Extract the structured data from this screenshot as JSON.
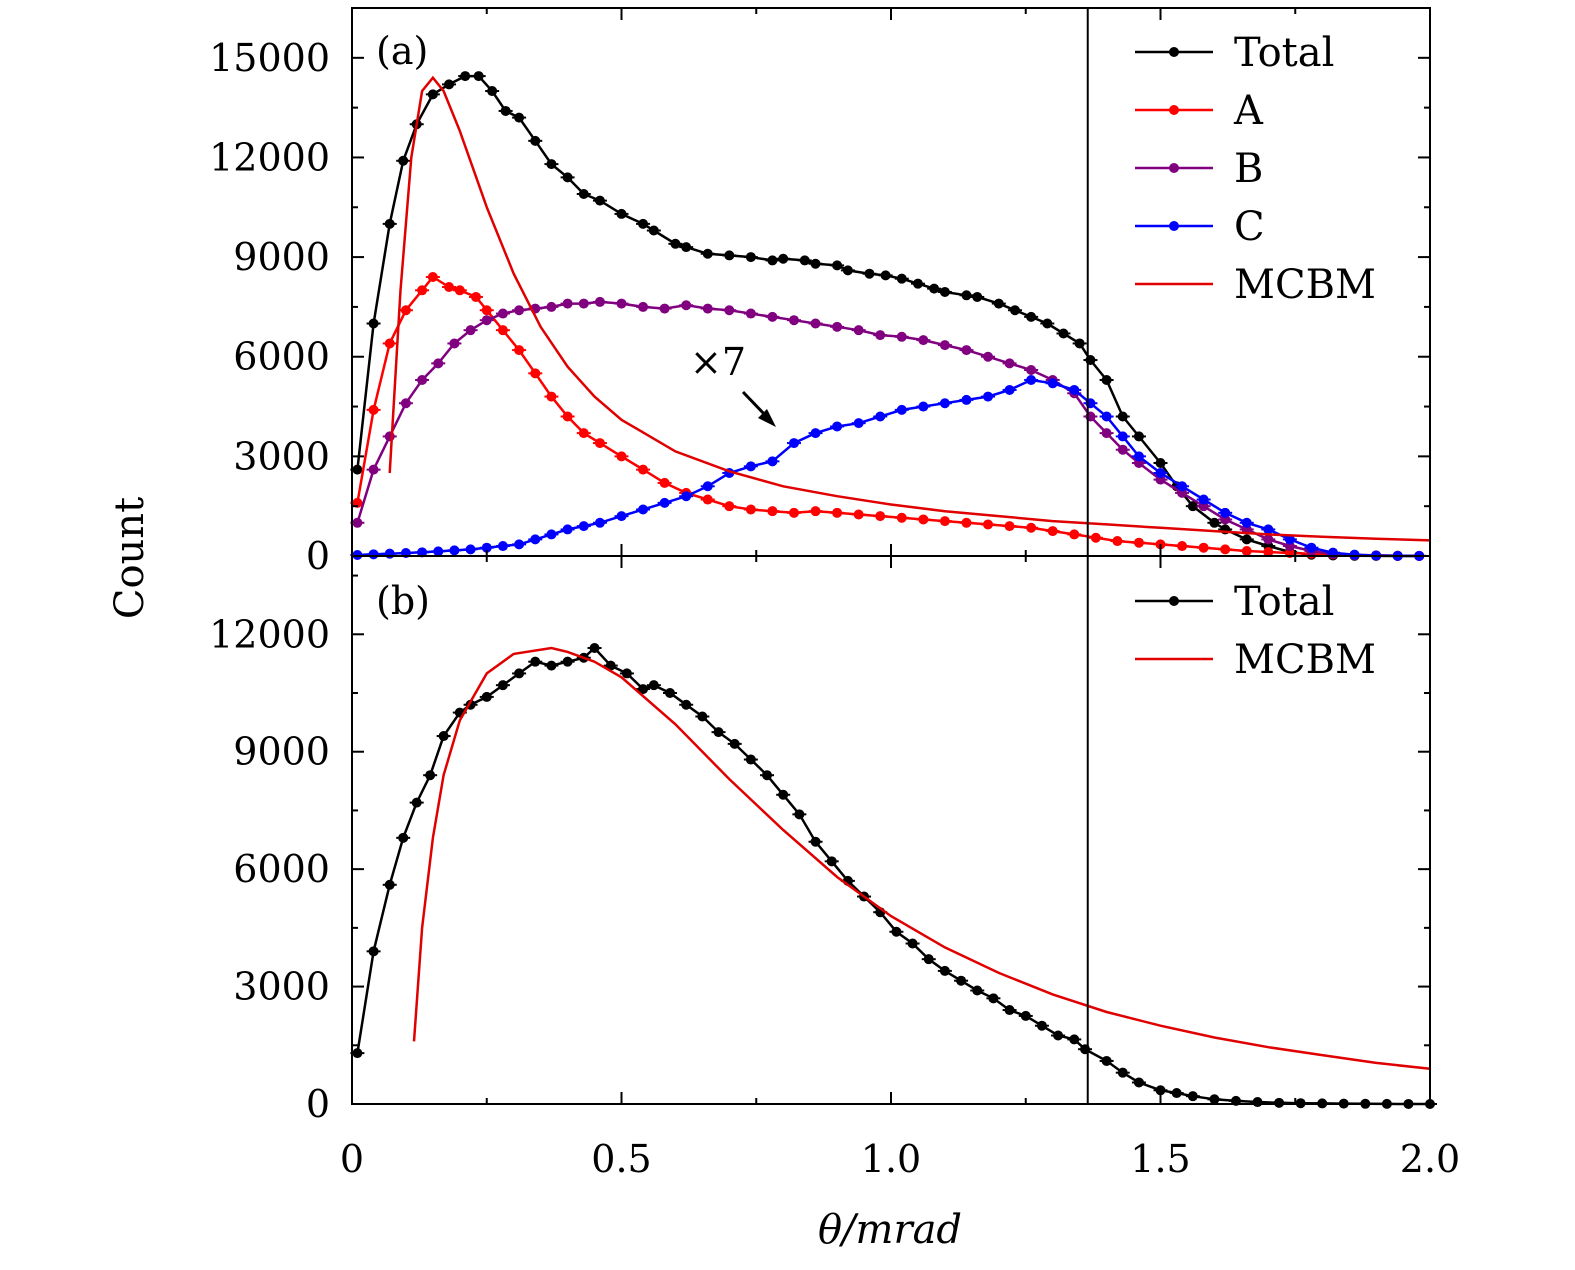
{
  "figure": {
    "xlabel": "θ/mrad",
    "ylabel": "Count",
    "x_ticks": [
      "0",
      "0.5",
      "1.0",
      "1.5",
      "2.0"
    ]
  },
  "colors": {
    "total": "#000000",
    "A": "#ff0000",
    "B": "#800080",
    "C": "#0000ff",
    "MCBM": "#e00000"
  },
  "chart_data": [
    {
      "type": "line",
      "panel_label": "(a)",
      "annotation": "×7",
      "xlim": [
        0,
        2.0
      ],
      "ylim": [
        0,
        16500
      ],
      "y_ticks": [
        "0",
        "3000",
        "6000",
        "9000",
        "12000",
        "15000"
      ],
      "y_tick_values": [
        0,
        3000,
        6000,
        9000,
        12000,
        15000
      ],
      "vertical_line_x": 1.365,
      "legend": [
        "Total",
        "A",
        "B",
        "C",
        "MCBM"
      ],
      "series": [
        {
          "name": "Total",
          "key": "total",
          "markers": true,
          "x": [
            0.01,
            0.04,
            0.07,
            0.095,
            0.12,
            0.15,
            0.18,
            0.21,
            0.235,
            0.26,
            0.285,
            0.31,
            0.34,
            0.37,
            0.4,
            0.43,
            0.46,
            0.5,
            0.54,
            0.56,
            0.6,
            0.62,
            0.66,
            0.7,
            0.74,
            0.78,
            0.8,
            0.84,
            0.86,
            0.9,
            0.92,
            0.96,
            0.99,
            1.02,
            1.05,
            1.08,
            1.1,
            1.14,
            1.16,
            1.2,
            1.23,
            1.26,
            1.29,
            1.32,
            1.35,
            1.37,
            1.4,
            1.43,
            1.46,
            1.5,
            1.53,
            1.56,
            1.6,
            1.62,
            1.66,
            1.7,
            1.74,
            1.78,
            1.82,
            1.86,
            1.9,
            1.94,
            1.98
          ],
          "values": [
            2600,
            7000,
            10000,
            11900,
            13000,
            13900,
            14200,
            14450,
            14450,
            14000,
            13400,
            13200,
            12500,
            11800,
            11400,
            10900,
            10700,
            10300,
            10000,
            9800,
            9400,
            9300,
            9100,
            9050,
            9000,
            8900,
            8950,
            8900,
            8800,
            8750,
            8600,
            8500,
            8450,
            8350,
            8200,
            8050,
            7950,
            7850,
            7800,
            7600,
            7400,
            7200,
            7000,
            6700,
            6400,
            5900,
            5300,
            4200,
            3600,
            2800,
            2100,
            1500,
            1000,
            800,
            500,
            300,
            120,
            40,
            15,
            5,
            2,
            1,
            0
          ]
        },
        {
          "name": "A",
          "key": "A",
          "markers": true,
          "x": [
            0.01,
            0.04,
            0.07,
            0.1,
            0.13,
            0.15,
            0.18,
            0.2,
            0.23,
            0.25,
            0.28,
            0.31,
            0.34,
            0.37,
            0.4,
            0.43,
            0.46,
            0.5,
            0.54,
            0.58,
            0.62,
            0.66,
            0.7,
            0.74,
            0.78,
            0.82,
            0.86,
            0.9,
            0.94,
            0.98,
            1.02,
            1.06,
            1.1,
            1.14,
            1.18,
            1.22,
            1.26,
            1.3,
            1.34,
            1.38,
            1.42,
            1.46,
            1.5,
            1.54,
            1.58,
            1.62,
            1.66,
            1.7,
            1.74,
            1.78,
            1.82,
            1.86,
            1.9,
            1.94,
            1.98
          ],
          "values": [
            1600,
            4400,
            6400,
            7400,
            8000,
            8400,
            8100,
            8000,
            7800,
            7400,
            6800,
            6200,
            5500,
            4800,
            4200,
            3700,
            3400,
            3000,
            2600,
            2200,
            1900,
            1700,
            1500,
            1400,
            1350,
            1300,
            1350,
            1300,
            1250,
            1200,
            1150,
            1100,
            1050,
            1000,
            950,
            900,
            850,
            750,
            650,
            550,
            450,
            400,
            350,
            300,
            250,
            200,
            150,
            120,
            90,
            70,
            50,
            30,
            20,
            10,
            5
          ]
        },
        {
          "name": "B",
          "key": "B",
          "markers": true,
          "x": [
            0.01,
            0.04,
            0.07,
            0.1,
            0.13,
            0.16,
            0.19,
            0.22,
            0.25,
            0.28,
            0.31,
            0.34,
            0.37,
            0.4,
            0.43,
            0.46,
            0.5,
            0.54,
            0.58,
            0.62,
            0.66,
            0.7,
            0.74,
            0.78,
            0.82,
            0.86,
            0.9,
            0.94,
            0.98,
            1.02,
            1.06,
            1.1,
            1.14,
            1.18,
            1.22,
            1.26,
            1.3,
            1.34,
            1.37,
            1.4,
            1.43,
            1.46,
            1.5,
            1.54,
            1.58,
            1.62,
            1.66,
            1.7,
            1.74,
            1.78,
            1.82,
            1.86,
            1.9,
            1.94,
            1.98
          ],
          "values": [
            1000,
            2600,
            3600,
            4600,
            5300,
            5800,
            6400,
            6800,
            7100,
            7300,
            7400,
            7450,
            7500,
            7600,
            7600,
            7650,
            7600,
            7500,
            7450,
            7550,
            7450,
            7400,
            7300,
            7200,
            7100,
            7000,
            6900,
            6800,
            6650,
            6600,
            6500,
            6350,
            6200,
            6000,
            5800,
            5600,
            5300,
            4900,
            4200,
            3700,
            3200,
            2800,
            2300,
            1900,
            1500,
            1100,
            800,
            500,
            300,
            150,
            60,
            20,
            8,
            3,
            1
          ]
        },
        {
          "name": "C",
          "key": "C",
          "markers": true,
          "x": [
            0.01,
            0.04,
            0.07,
            0.1,
            0.13,
            0.16,
            0.19,
            0.22,
            0.25,
            0.28,
            0.31,
            0.34,
            0.37,
            0.4,
            0.43,
            0.46,
            0.5,
            0.54,
            0.58,
            0.62,
            0.66,
            0.7,
            0.74,
            0.78,
            0.82,
            0.86,
            0.9,
            0.94,
            0.98,
            1.02,
            1.06,
            1.1,
            1.14,
            1.18,
            1.22,
            1.26,
            1.3,
            1.34,
            1.37,
            1.4,
            1.43,
            1.46,
            1.5,
            1.54,
            1.58,
            1.62,
            1.66,
            1.7,
            1.74,
            1.78,
            1.82,
            1.86,
            1.9,
            1.94,
            1.98
          ],
          "values": [
            30,
            50,
            70,
            90,
            110,
            140,
            170,
            200,
            250,
            300,
            350,
            500,
            650,
            800,
            900,
            1000,
            1200,
            1400,
            1600,
            1800,
            2100,
            2500,
            2700,
            2850,
            3400,
            3700,
            3900,
            4000,
            4200,
            4400,
            4500,
            4600,
            4700,
            4800,
            5000,
            5300,
            5200,
            5000,
            4600,
            4200,
            3600,
            3000,
            2500,
            2100,
            1700,
            1300,
            1000,
            800,
            500,
            250,
            100,
            40,
            15,
            5,
            2
          ]
        },
        {
          "name": "MCBM",
          "key": "MCBM",
          "markers": false,
          "x": [
            0.07,
            0.09,
            0.11,
            0.13,
            0.15,
            0.17,
            0.2,
            0.25,
            0.3,
            0.35,
            0.4,
            0.45,
            0.5,
            0.6,
            0.7,
            0.8,
            0.9,
            1.0,
            1.1,
            1.2,
            1.3,
            1.4,
            1.5,
            1.6,
            1.7,
            1.8,
            1.9,
            2.0
          ],
          "values": [
            2500,
            8000,
            12000,
            14000,
            14400,
            14000,
            12800,
            10500,
            8500,
            6900,
            5700,
            4800,
            4100,
            3150,
            2550,
            2100,
            1800,
            1550,
            1350,
            1200,
            1050,
            950,
            850,
            750,
            650,
            580,
            520,
            470
          ]
        }
      ]
    },
    {
      "type": "line",
      "panel_label": "(b)",
      "xlim": [
        0,
        2.0
      ],
      "ylim": [
        0,
        14000
      ],
      "y_ticks": [
        "0",
        "3000",
        "6000",
        "9000",
        "12000"
      ],
      "y_tick_values": [
        0,
        3000,
        6000,
        9000,
        12000
      ],
      "vertical_line_x": 1.365,
      "legend": [
        "Total",
        "MCBM"
      ],
      "series": [
        {
          "name": "Total",
          "key": "total",
          "markers": true,
          "x": [
            0.01,
            0.04,
            0.07,
            0.095,
            0.12,
            0.145,
            0.17,
            0.2,
            0.22,
            0.25,
            0.28,
            0.31,
            0.34,
            0.37,
            0.4,
            0.43,
            0.45,
            0.48,
            0.51,
            0.54,
            0.56,
            0.59,
            0.62,
            0.65,
            0.68,
            0.71,
            0.74,
            0.77,
            0.8,
            0.83,
            0.86,
            0.89,
            0.92,
            0.95,
            0.98,
            1.01,
            1.04,
            1.07,
            1.1,
            1.13,
            1.16,
            1.19,
            1.22,
            1.25,
            1.28,
            1.31,
            1.34,
            1.36,
            1.4,
            1.43,
            1.46,
            1.5,
            1.53,
            1.56,
            1.6,
            1.64,
            1.68,
            1.72,
            1.76,
            1.8,
            1.84,
            1.88,
            1.92,
            1.96,
            2.0
          ],
          "values": [
            1300,
            3900,
            5600,
            6800,
            7700,
            8400,
            9400,
            10000,
            10200,
            10400,
            10700,
            11000,
            11300,
            11200,
            11300,
            11400,
            11650,
            11200,
            11000,
            10600,
            10700,
            10500,
            10200,
            9900,
            9500,
            9200,
            8800,
            8400,
            7900,
            7400,
            6700,
            6200,
            5700,
            5300,
            4900,
            4400,
            4100,
            3700,
            3400,
            3150,
            2900,
            2700,
            2400,
            2250,
            2000,
            1750,
            1650,
            1400,
            1100,
            800,
            550,
            350,
            280,
            200,
            120,
            80,
            50,
            30,
            20,
            15,
            10,
            5,
            3,
            1,
            0
          ]
        },
        {
          "name": "MCBM",
          "key": "MCBM",
          "markers": false,
          "x": [
            0.115,
            0.13,
            0.15,
            0.17,
            0.2,
            0.25,
            0.3,
            0.37,
            0.4,
            0.45,
            0.5,
            0.6,
            0.7,
            0.8,
            0.9,
            1.0,
            1.1,
            1.2,
            1.3,
            1.4,
            1.5,
            1.6,
            1.7,
            1.8,
            1.9,
            2.0
          ],
          "values": [
            1600,
            4500,
            6800,
            8400,
            9800,
            11000,
            11500,
            11650,
            11550,
            11300,
            10900,
            9700,
            8300,
            7000,
            5800,
            4800,
            4000,
            3350,
            2800,
            2350,
            2000,
            1700,
            1450,
            1250,
            1050,
            900
          ]
        }
      ]
    }
  ]
}
